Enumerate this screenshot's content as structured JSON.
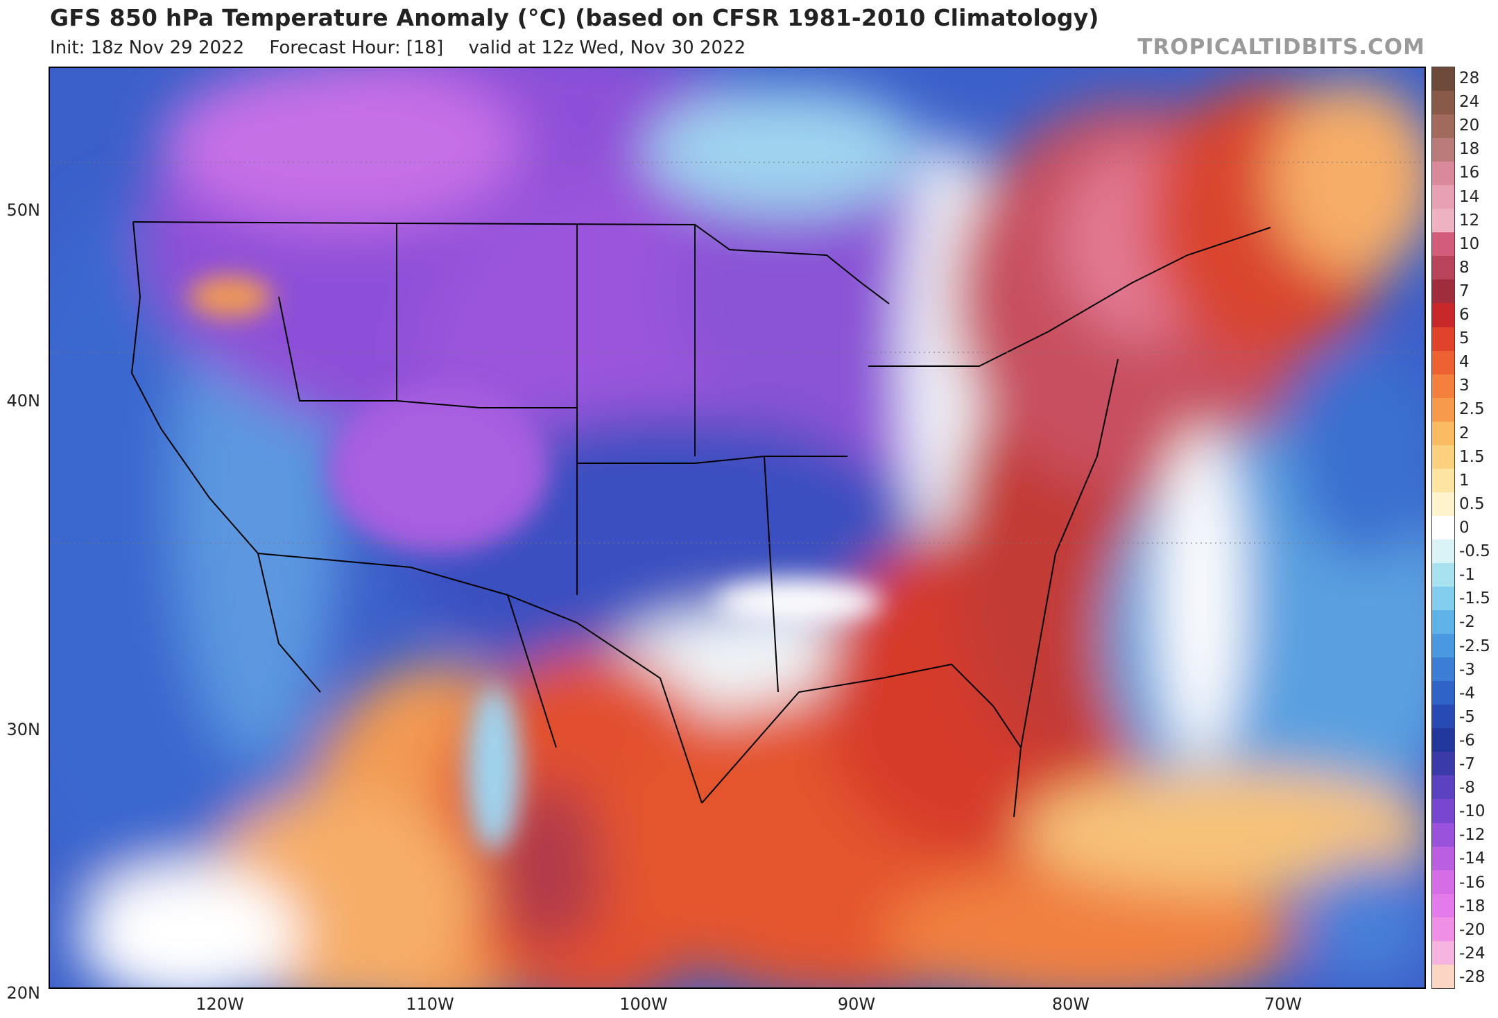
{
  "header": {
    "title": "GFS 850 hPa Temperature Anomaly (°C) (based on CFSR 1981-2010 Climatology)",
    "init": "Init: 18z Nov 29 2022",
    "forecast_hour": "Forecast Hour: [18]",
    "valid": "valid at 12z Wed, Nov 30 2022",
    "brand": "TROPICALTIDBITS.COM"
  },
  "map": {
    "lat_labels": [
      "50N",
      "40N",
      "30N",
      "20N"
    ],
    "lon_labels": [
      "120W",
      "110W",
      "100W",
      "90W",
      "80W",
      "70W"
    ],
    "colors": {
      "strong_cold": "#8e4fd8",
      "very_cold": "#b25ae0",
      "cold": "#3b5fc9",
      "mild_cold": "#5b97e0",
      "cool": "#9fd3ef",
      "neutral": "#ffffff",
      "warm": "#f6a35a",
      "hot": "#e2502d",
      "very_hot": "#c8505e",
      "extreme": "#e27a94"
    }
  },
  "colorbar": {
    "labels": [
      "28",
      "24",
      "20",
      "18",
      "16",
      "14",
      "12",
      "10",
      "8",
      "7",
      "6",
      "5",
      "4",
      "3",
      "2.5",
      "2",
      "1.5",
      "1",
      "0.5",
      "0",
      "-0.5",
      "-1",
      "-1.5",
      "-2",
      "-2.5",
      "-3",
      "-4",
      "-5",
      "-6",
      "-7",
      "-8",
      "-10",
      "-12",
      "-14",
      "-16",
      "-18",
      "-20",
      "-24",
      "-28"
    ],
    "colors": [
      "#6e4a3a",
      "#8a5a48",
      "#a26a5c",
      "#b97b79",
      "#d9899a",
      "#e8a1b4",
      "#efb2c3",
      "#d25c7a",
      "#b9435a",
      "#a02d3c",
      "#c8282a",
      "#e0422c",
      "#ee6132",
      "#f57f3c",
      "#f89a4c",
      "#faba62",
      "#fbd07f",
      "#fde4a3",
      "#fef3cd",
      "#ffffff",
      "#d9f3f7",
      "#a8e2f0",
      "#82cdee",
      "#5fb2e8",
      "#4a98df",
      "#3c7ed5",
      "#2f63c6",
      "#274bb3",
      "#22379c",
      "#3a3aa8",
      "#5b40c0",
      "#7747cf",
      "#9a51dc",
      "#bb5fe2",
      "#d46de6",
      "#e57bea",
      "#f08fe6",
      "#f7b3e0",
      "#fbd4c4"
    ]
  }
}
